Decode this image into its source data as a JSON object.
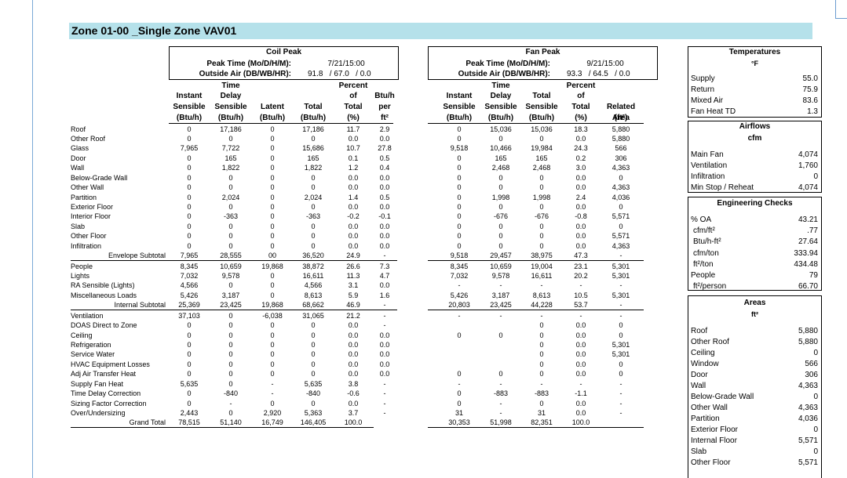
{
  "title": "Zone 01-00 _Single Zone VAV01",
  "coil_peak": {
    "label": "Coil Peak",
    "peak_time_label": "Peak Time (Mo/D/H/M):",
    "peak_time": "7/21/15:00",
    "outside_air_label": "Outside Air (DB/WB/HR):",
    "outside_air": "91.8   / 67.0   / 0.0"
  },
  "fan_peak": {
    "label": "Fan Peak",
    "peak_time_label": "Peak Time (Mo/D/H/M):",
    "peak_time": "9/21/15:00",
    "outside_air_label": "Outside Air (DB/WB/HR):",
    "outside_air": "93.3   / 64.5   / 0.0"
  },
  "left_headers": [
    [
      "",
      "",
      "Instant",
      "Sensible",
      "(Btu/h)"
    ],
    [
      "",
      "Time",
      "Delay",
      "Sensible",
      "(Btu/h)"
    ],
    [
      "",
      "",
      "",
      "Latent",
      "(Btu/h)"
    ],
    [
      "",
      "",
      "",
      "Total",
      "(Btu/h)"
    ],
    [
      "",
      "Percent",
      "of",
      "Total",
      "(%)"
    ],
    [
      "",
      "",
      "Btu/h",
      "per",
      "ft²"
    ]
  ],
  "right_headers": [
    [
      "",
      "",
      "Instant",
      "Sensible",
      "(Btu/h)"
    ],
    [
      "",
      "Time",
      "Delay",
      "Sensible",
      "(Btu/h)"
    ],
    [
      "",
      "",
      "Total",
      "Sensible",
      "(Btu/h)"
    ],
    [
      "",
      "Percent",
      "of",
      "Total",
      "(%)"
    ],
    [
      "",
      "",
      "",
      "Related",
      "Area"
    ],
    [
      "",
      "",
      "",
      "",
      "(ft²)"
    ]
  ],
  "rows": [
    {
      "label": "Roof",
      "indent": false,
      "left": [
        "0",
        "17,186",
        "0",
        "17,186",
        "11.7",
        "2.9"
      ],
      "right": [
        "0",
        "15,036",
        "15,036",
        "18.3",
        "5,880"
      ]
    },
    {
      "label": "Other Roof",
      "indent": false,
      "left": [
        "0",
        "0",
        "0",
        "0",
        "0.0",
        "0.0"
      ],
      "right": [
        "0",
        "0",
        "0",
        "0.0",
        "5,880"
      ]
    },
    {
      "label": "Glass",
      "indent": false,
      "left": [
        "7,965",
        "7,722",
        "0",
        "15,686",
        "10.7",
        "27.8"
      ],
      "right": [
        "9,518",
        "10,466",
        "19,984",
        "24.3",
        "566"
      ]
    },
    {
      "label": "Door",
      "indent": false,
      "left": [
        "0",
        "165",
        "0",
        "165",
        "0.1",
        "0.5"
      ],
      "right": [
        "0",
        "165",
        "165",
        "0.2",
        "306"
      ]
    },
    {
      "label": "Wall",
      "indent": false,
      "left": [
        "0",
        "1,822",
        "0",
        "1,822",
        "1.2",
        "0.4"
      ],
      "right": [
        "0",
        "2,468",
        "2,468",
        "3.0",
        "4,363"
      ]
    },
    {
      "label": "Below-Grade Wall",
      "indent": false,
      "left": [
        "0",
        "0",
        "0",
        "0",
        "0.0",
        "0.0"
      ],
      "right": [
        "0",
        "0",
        "0",
        "0.0",
        "0"
      ]
    },
    {
      "label": "Other Wall",
      "indent": false,
      "left": [
        "0",
        "0",
        "0",
        "0",
        "0.0",
        "0.0"
      ],
      "right": [
        "0",
        "0",
        "0",
        "0.0",
        "4,363"
      ]
    },
    {
      "label": "Partition",
      "indent": false,
      "left": [
        "0",
        "2,024",
        "0",
        "2,024",
        "1.4",
        "0.5"
      ],
      "right": [
        "0",
        "1,998",
        "1,998",
        "2.4",
        "4,036"
      ]
    },
    {
      "label": "Exterior Floor",
      "indent": false,
      "left": [
        "0",
        "0",
        "0",
        "0",
        "0.0",
        "0.0"
      ],
      "right": [
        "0",
        "0",
        "0",
        "0.0",
        "0"
      ]
    },
    {
      "label": "Interior Floor",
      "indent": false,
      "left": [
        "0",
        "-363",
        "0",
        "-363",
        "-0.2",
        "-0.1"
      ],
      "right": [
        "0",
        "-676",
        "-676",
        "-0.8",
        "5,571"
      ]
    },
    {
      "label": "Slab",
      "indent": false,
      "left": [
        "0",
        "0",
        "0",
        "0",
        "0.0",
        "0.0"
      ],
      "right": [
        "0",
        "0",
        "0",
        "0.0",
        "0"
      ]
    },
    {
      "label": "Other Floor",
      "indent": false,
      "left": [
        "0",
        "0",
        "0",
        "0",
        "0.0",
        "0.0"
      ],
      "right": [
        "0",
        "0",
        "0",
        "0.0",
        "5,571"
      ]
    },
    {
      "label": "Infiltration",
      "indent": false,
      "left": [
        "0",
        "0",
        "0",
        "0",
        "0.0",
        "0.0"
      ],
      "right": [
        "0",
        "0",
        "0",
        "0.0",
        "4,363"
      ]
    },
    {
      "label": "Envelope Subtotal",
      "indent": true,
      "left": [
        "7,965",
        "28,555",
        "00",
        "36,520",
        "24.9",
        "-"
      ],
      "right": [
        "9,518",
        "29,457",
        "38,975",
        "47.3",
        "-"
      ]
    },
    {
      "label": "People",
      "indent": false,
      "left": [
        "8,345",
        "10,659",
        "19,868",
        "38,872",
        "26.6",
        "7.3"
      ],
      "right": [
        "8,345",
        "10,659",
        "19,004",
        "23.1",
        "5,301"
      ]
    },
    {
      "label": "Lights",
      "indent": false,
      "left": [
        "7,032",
        "9,578",
        "0",
        "16,611",
        "11.3",
        "4.7"
      ],
      "right": [
        "7,032",
        "9,578",
        "16,611",
        "20.2",
        "5,301"
      ]
    },
    {
      "label": "RA Sensible (Lights)",
      "indent": false,
      "left": [
        "4,566",
        "0",
        "0",
        "4,566",
        "3.1",
        "0.0"
      ],
      "right": [
        "-",
        "-",
        "-",
        "-",
        "-"
      ]
    },
    {
      "label": "Miscellaneous Loads",
      "indent": false,
      "left": [
        "5,426",
        "3,187",
        "0",
        "8,613",
        "5.9",
        "1.6"
      ],
      "right": [
        "5,426",
        "3,187",
        "8,613",
        "10.5",
        "5,301"
      ]
    },
    {
      "label": "Internal Subtotal",
      "indent": true,
      "left": [
        "25,369",
        "23,425",
        "19,868",
        "68,662",
        "46.9",
        "-"
      ],
      "right": [
        "20,803",
        "23,425",
        "44,228",
        "53.7",
        "-"
      ]
    },
    {
      "label": "Ventilation",
      "indent": false,
      "left": [
        "37,103",
        "0",
        "-6,038",
        "31,065",
        "21.2",
        "-"
      ],
      "right": [
        "-",
        "-",
        "-",
        "-",
        "-"
      ]
    },
    {
      "label": "DOAS Direct to Zone",
      "indent": false,
      "left": [
        "0",
        "0",
        "0",
        "0",
        "0.0",
        "-"
      ],
      "right": [
        "",
        "",
        "0",
        "0.0",
        "0"
      ]
    },
    {
      "label": "Ceiling",
      "indent": false,
      "left": [
        "0",
        "0",
        "0",
        "0",
        "0.0",
        "0.0"
      ],
      "right": [
        "0",
        "0",
        "0",
        "0.0",
        "0"
      ]
    },
    {
      "label": "Refrigeration",
      "indent": false,
      "left": [
        "0",
        "0",
        "0",
        "0",
        "0.0",
        "0.0"
      ],
      "right": [
        "",
        "",
        "0",
        "0.0",
        "5,301"
      ]
    },
    {
      "label": "Service Water",
      "indent": false,
      "left": [
        "0",
        "0",
        "0",
        "0",
        "0.0",
        "0.0"
      ],
      "right": [
        "",
        "",
        "0",
        "0.0",
        "5,301"
      ]
    },
    {
      "label": "HVAC Equipment Losses",
      "indent": false,
      "left": [
        "0",
        "0",
        "0",
        "0",
        "0.0",
        "0.0"
      ],
      "right": [
        "",
        "",
        "0",
        "0.0",
        "0"
      ]
    },
    {
      "label": "Adj Air Transfer Heat",
      "indent": false,
      "left": [
        "0",
        "0",
        "0",
        "0",
        "0.0",
        "0.0"
      ],
      "right": [
        "0",
        "0",
        "0",
        "0.0",
        "0"
      ]
    },
    {
      "label": "Supply Fan Heat",
      "indent": false,
      "left": [
        "5,635",
        "0",
        "-",
        "5,635",
        "3.8",
        "-"
      ],
      "right": [
        "-",
        "-",
        "-",
        "-",
        "-"
      ]
    },
    {
      "label": "Time Delay Correction",
      "indent": false,
      "left": [
        "0",
        "-840",
        "-",
        "-840",
        "-0.6",
        "-"
      ],
      "right": [
        "0",
        "-883",
        "-883",
        "-1.1",
        "-"
      ]
    },
    {
      "label": "Sizing Factor Correction",
      "indent": false,
      "left": [
        "0",
        "-",
        "0",
        "0",
        "0.0",
        "-"
      ],
      "right": [
        "0",
        "-",
        "0",
        "0.0",
        "-"
      ]
    },
    {
      "label": "Over/Undersizing",
      "indent": false,
      "left": [
        "2,443",
        "0",
        "2,920",
        "5,363",
        "3.7",
        "-"
      ],
      "right": [
        "31",
        "-",
        "31",
        "0.0",
        "-"
      ]
    },
    {
      "label": "Grand Total",
      "indent": true,
      "left": [
        "78,515",
        "51,140",
        "16,749",
        "146,405",
        "100.0",
        ""
      ],
      "right": [
        "30,353",
        "51,998",
        "82,351",
        "100.0",
        ""
      ]
    }
  ],
  "temperatures": {
    "title": "Temperatures",
    "unit": "°F",
    "items": [
      {
        "label": "Supply",
        "value": "55.0"
      },
      {
        "label": "Return",
        "value": "75.9"
      },
      {
        "label": "Mixed Air",
        "value": "83.6"
      },
      {
        "label": "Fan Heat TD",
        "value": "1.3"
      }
    ]
  },
  "airflows": {
    "title": "Airflows",
    "unit": "cfm",
    "items": [
      {
        "label": "Main Fan",
        "value": "4,074"
      },
      {
        "label": "Ventilation",
        "value": "1,760"
      },
      {
        "label": "Infiltration",
        "value": "0"
      },
      {
        "label": "Min Stop / Reheat",
        "value": "4,074"
      }
    ]
  },
  "engineering": {
    "title": "Engineering Checks",
    "items": [
      {
        "label": "% OA",
        "value": "43.21",
        "indent": false
      },
      {
        "label": "cfm/ft²",
        "value": ".77",
        "indent": true
      },
      {
        "label": "Btu/h-ft²",
        "value": "27.64",
        "indent": true
      },
      {
        "label": "cfm/ton",
        "value": "333.94",
        "indent": true
      },
      {
        "label": "ft²/ton",
        "value": "434.48",
        "indent": true
      },
      {
        "label": "People",
        "value": "79",
        "indent": false
      },
      {
        "label": "ft²/person",
        "value": "66.70",
        "indent": true
      }
    ]
  },
  "areas": {
    "title": "Areas",
    "unit": "ft²",
    "items": [
      {
        "label": "Roof",
        "value": "5,880"
      },
      {
        "label": "Other Roof",
        "value": "5,880"
      },
      {
        "label": "Ceiling",
        "value": "0"
      },
      {
        "label": "Window",
        "value": "566"
      },
      {
        "label": "Door",
        "value": "306"
      },
      {
        "label": "Wall",
        "value": "4,363"
      },
      {
        "label": "Below-Grade Wall",
        "value": "0"
      },
      {
        "label": "Other Wall",
        "value": "4,363"
      },
      {
        "label": "Partition",
        "value": "4,036"
      },
      {
        "label": "Exterior Floor",
        "value": "0"
      },
      {
        "label": "Internal Floor",
        "value": "5,571"
      },
      {
        "label": "Slab",
        "value": "0"
      },
      {
        "label": "Other Floor",
        "value": "5,571"
      }
    ]
  }
}
